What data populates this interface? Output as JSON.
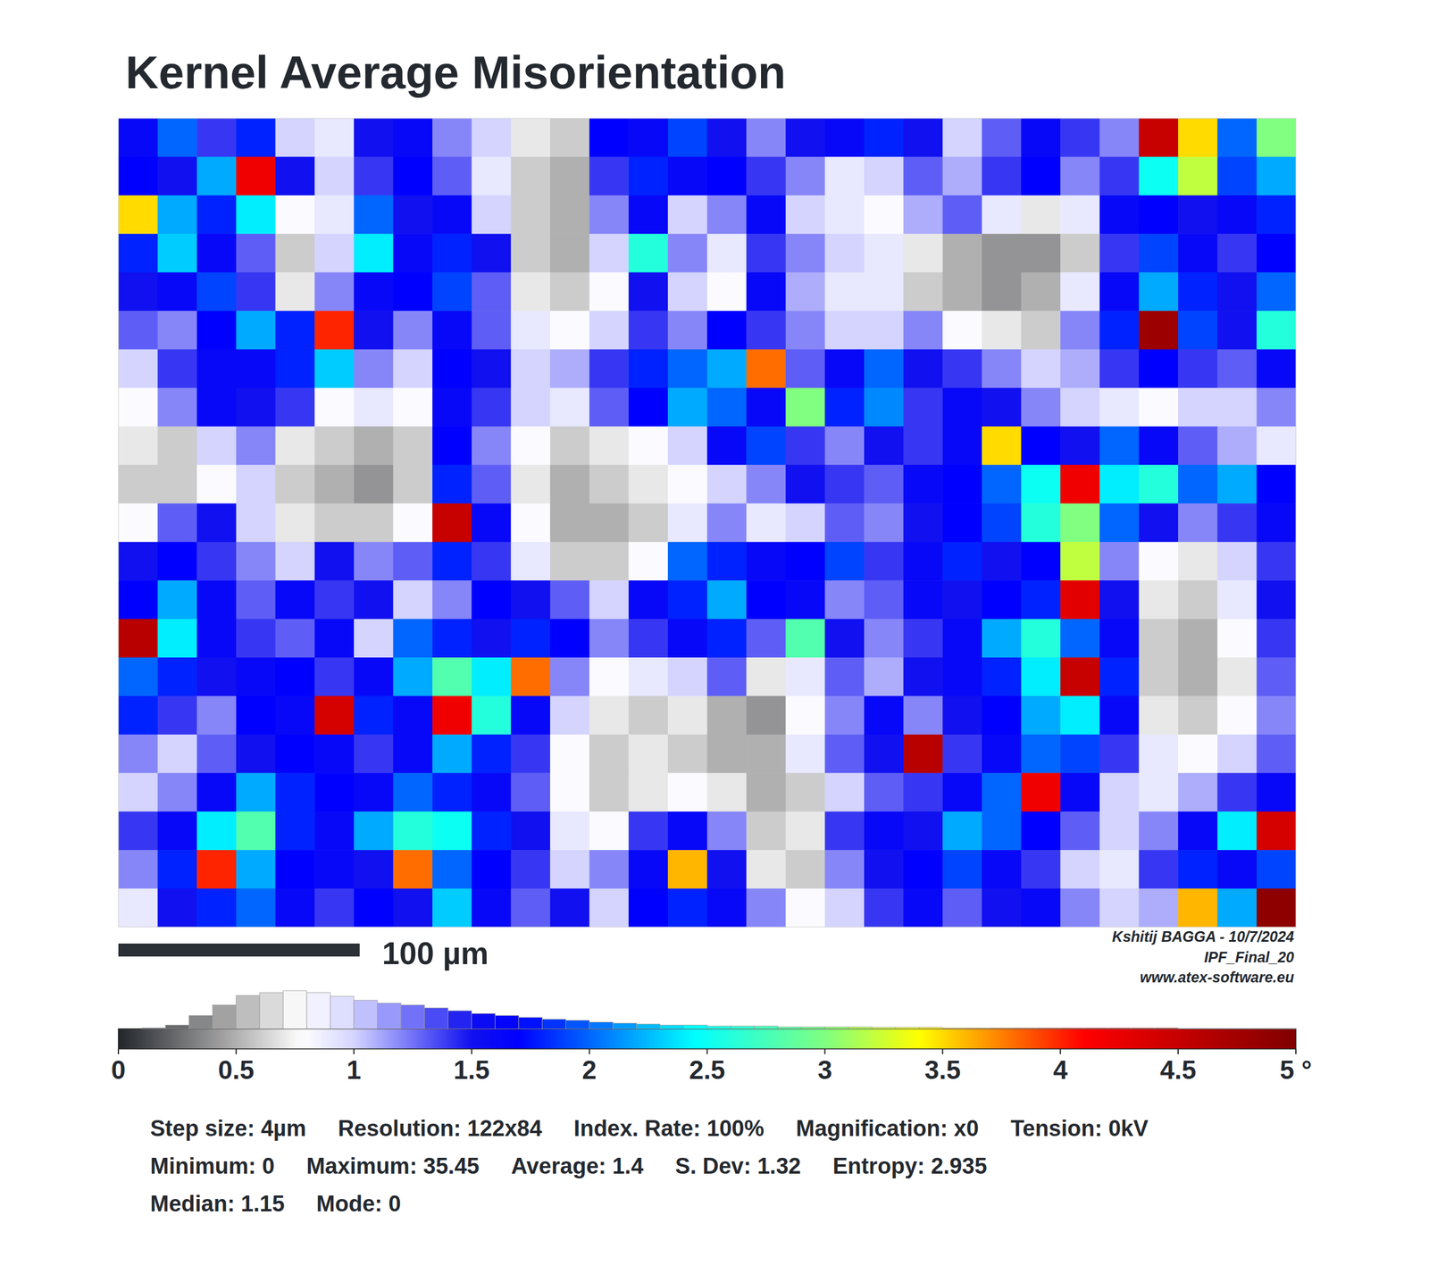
{
  "chart_data": {
    "type": "heatmap",
    "title": "Kernel Average Misorientation",
    "xlim": [
      0,
      488
    ],
    "ylim": [
      0,
      336
    ],
    "tick_labels": false,
    "scale_bar": {
      "length": 100,
      "label": "100 µm"
    },
    "credits": [
      "Kshitij BAGGA - 10/7/2024",
      "IPF_Final_20",
      "www.atex-software.eu"
    ],
    "stats": [
      [
        "Step size: 4µm",
        "Resolution: 122x84",
        "Index. Rate: 100%",
        "Magnification: x0",
        "Tension: 0kV"
      ],
      [
        "Minimum: 0",
        "Maximum: 35.45",
        "Average: 1.4",
        "S. Dev: 1.32",
        "Entropy: 2.935"
      ],
      [
        "Median: 1.15",
        "Mode: 0"
      ]
    ],
    "colorbar": {
      "range": [
        0,
        5
      ],
      "ticks": [
        0,
        0.5,
        1,
        1.5,
        2,
        2.5,
        3,
        3.5,
        4,
        4.5,
        {
          "value": 5,
          "label": "5 °"
        }
      ]
    },
    "histogram": {
      "bins": [
        0,
        0.1,
        0.2,
        0.3,
        0.4,
        0.5,
        0.6,
        0.7,
        0.8,
        0.9,
        1,
        1.1,
        1.2,
        1.3,
        1.4,
        1.5,
        1.6,
        1.7,
        1.8,
        1.9,
        2,
        2.1,
        2.2,
        2.3,
        2.4,
        2.5,
        2.6,
        2.7,
        2.8,
        2.9,
        3,
        3.1,
        3.2,
        3.3,
        3.4,
        3.5,
        3.6,
        3.7,
        3.8,
        3.9,
        4,
        4.1,
        4.2,
        4.3,
        4.4,
        4.5,
        4.6,
        4.7,
        4.8,
        4.9,
        5
      ],
      "counts": [
        0,
        1,
        4,
        14,
        25,
        35,
        38,
        40,
        38,
        34,
        30,
        27,
        25,
        22,
        19,
        16,
        14,
        12,
        10,
        9,
        7,
        6,
        5,
        4,
        4,
        3,
        3,
        3,
        2,
        2,
        2,
        2,
        1.5,
        1.5,
        1.5,
        1,
        1,
        1,
        1,
        1,
        1,
        1,
        1,
        1,
        1,
        0.5,
        0.5,
        0.5,
        0.5,
        0.5
      ]
    },
    "cells": [
      [
        1.6,
        2.0,
        1.4,
        1.8,
        1.0,
        0.9,
        1.5,
        1.6,
        1.2,
        1.0,
        0.7,
        0.6,
        1.7,
        1.6,
        1.9,
        1.5,
        1.2,
        1.5,
        1.6,
        1.8,
        1.5,
        1.0,
        1.3,
        1.6,
        1.4,
        1.2,
        4.5,
        3.5,
        2.0,
        3.0
      ],
      [
        1.7,
        1.5,
        2.2,
        4.2,
        1.5,
        1.0,
        1.4,
        1.7,
        1.3,
        0.9,
        0.6,
        0.5,
        1.4,
        1.8,
        1.6,
        1.7,
        1.4,
        1.2,
        0.9,
        1.0,
        1.3,
        1.1,
        1.4,
        1.7,
        1.2,
        1.4,
        2.5,
        3.2,
        1.9,
        2.2
      ],
      [
        3.5,
        2.2,
        1.8,
        2.4,
        0.8,
        0.9,
        2.0,
        1.5,
        1.6,
        1.0,
        0.6,
        0.5,
        1.2,
        1.6,
        1.0,
        1.2,
        1.6,
        1.0,
        0.9,
        0.8,
        1.1,
        1.3,
        0.9,
        0.7,
        0.9,
        1.6,
        1.7,
        1.5,
        1.6,
        1.8
      ],
      [
        1.8,
        2.3,
        1.6,
        1.3,
        0.6,
        1.0,
        2.4,
        1.6,
        1.8,
        1.5,
        0.6,
        0.5,
        1.0,
        2.6,
        1.2,
        0.9,
        1.4,
        1.2,
        1.0,
        0.9,
        0.7,
        0.5,
        0.4,
        0.4,
        0.6,
        1.4,
        1.9,
        1.6,
        1.4,
        1.7
      ],
      [
        1.5,
        1.6,
        1.9,
        1.4,
        0.7,
        1.2,
        1.6,
        1.7,
        1.9,
        1.3,
        0.7,
        0.6,
        0.8,
        1.5,
        1.0,
        0.8,
        1.6,
        1.1,
        0.9,
        0.9,
        0.6,
        0.5,
        0.4,
        0.5,
        0.9,
        1.6,
        2.2,
        1.8,
        1.5,
        2.0
      ],
      [
        1.3,
        1.2,
        1.7,
        2.2,
        1.8,
        4.0,
        1.5,
        1.2,
        1.6,
        1.3,
        0.9,
        0.8,
        1.0,
        1.4,
        1.2,
        1.7,
        1.4,
        1.2,
        1.0,
        1.0,
        1.2,
        0.8,
        0.7,
        0.6,
        1.2,
        1.8,
        4.8,
        1.9,
        1.5,
        2.6
      ],
      [
        1.0,
        1.4,
        1.6,
        1.6,
        1.8,
        2.3,
        1.2,
        1.0,
        1.7,
        1.5,
        1.0,
        1.1,
        1.4,
        1.8,
        2.0,
        2.2,
        3.8,
        1.3,
        1.6,
        2.0,
        1.5,
        1.4,
        1.2,
        1.0,
        1.1,
        1.4,
        1.7,
        1.4,
        1.3,
        1.6
      ],
      [
        0.8,
        1.2,
        1.6,
        1.5,
        1.4,
        0.8,
        0.9,
        0.8,
        1.6,
        1.4,
        1.0,
        0.9,
        1.3,
        1.7,
        2.2,
        2.0,
        1.6,
        3.0,
        1.8,
        2.1,
        1.4,
        1.6,
        1.5,
        1.2,
        1.0,
        0.9,
        0.8,
        1.0,
        1.0,
        1.2
      ],
      [
        0.7,
        0.6,
        1.0,
        1.2,
        0.7,
        0.6,
        0.5,
        0.6,
        1.7,
        1.2,
        0.8,
        0.6,
        0.7,
        0.8,
        1.0,
        1.6,
        1.9,
        1.4,
        1.2,
        1.5,
        1.4,
        1.6,
        3.5,
        1.7,
        1.5,
        2.0,
        1.6,
        1.3,
        1.1,
        0.9
      ],
      [
        0.6,
        0.6,
        0.8,
        1.0,
        0.6,
        0.5,
        0.4,
        0.6,
        1.8,
        1.3,
        0.7,
        0.5,
        0.6,
        0.7,
        0.8,
        1.0,
        1.2,
        1.5,
        1.4,
        1.3,
        1.6,
        1.7,
        2.0,
        2.5,
        4.2,
        2.4,
        2.6,
        2.0,
        2.2,
        1.7
      ],
      [
        0.8,
        1.3,
        1.5,
        1.0,
        0.7,
        0.6,
        0.6,
        0.8,
        4.5,
        1.6,
        0.8,
        0.5,
        0.5,
        0.6,
        0.9,
        1.2,
        0.9,
        1.0,
        1.3,
        1.2,
        1.5,
        1.7,
        1.9,
        2.6,
        3.0,
        2.0,
        1.5,
        1.2,
        1.4,
        1.6
      ],
      [
        1.5,
        1.7,
        1.4,
        1.2,
        1.0,
        1.5,
        1.2,
        1.3,
        1.8,
        1.4,
        0.9,
        0.6,
        0.6,
        0.8,
        2.0,
        1.8,
        1.6,
        1.7,
        1.9,
        1.4,
        1.6,
        1.8,
        1.5,
        1.7,
        3.2,
        1.2,
        0.8,
        0.7,
        1.0,
        1.4
      ],
      [
        1.7,
        2.2,
        1.6,
        1.3,
        1.6,
        1.4,
        1.5,
        1.0,
        1.2,
        1.7,
        1.5,
        1.3,
        1.0,
        1.6,
        1.8,
        2.2,
        1.7,
        1.6,
        1.2,
        1.3,
        1.6,
        1.5,
        1.7,
        1.8,
        4.3,
        1.5,
        0.7,
        0.6,
        0.9,
        1.5
      ],
      [
        4.6,
        2.4,
        1.6,
        1.4,
        1.3,
        1.6,
        1.0,
        2.0,
        1.8,
        1.5,
        1.8,
        1.7,
        1.2,
        1.4,
        1.6,
        1.8,
        1.3,
        2.8,
        1.5,
        1.2,
        1.4,
        1.6,
        2.2,
        2.6,
        2.0,
        1.6,
        0.6,
        0.5,
        0.8,
        1.4
      ],
      [
        2.0,
        1.8,
        1.5,
        1.6,
        1.7,
        1.4,
        1.6,
        2.2,
        2.8,
        2.4,
        3.8,
        1.2,
        0.8,
        0.9,
        1.0,
        1.3,
        0.7,
        0.9,
        1.3,
        1.1,
        1.5,
        1.6,
        1.8,
        2.4,
        4.5,
        1.8,
        0.6,
        0.5,
        0.7,
        1.3
      ],
      [
        1.8,
        1.4,
        1.2,
        1.7,
        1.6,
        4.4,
        1.8,
        1.6,
        4.2,
        2.6,
        1.6,
        1.0,
        0.7,
        0.6,
        0.7,
        0.5,
        0.4,
        0.8,
        1.2,
        1.6,
        1.2,
        1.5,
        1.7,
        2.2,
        2.4,
        1.6,
        0.7,
        0.6,
        0.8,
        1.2
      ],
      [
        1.2,
        1.0,
        1.3,
        1.5,
        1.7,
        1.6,
        1.4,
        1.6,
        2.2,
        1.8,
        1.4,
        0.8,
        0.6,
        0.7,
        0.6,
        0.5,
        0.5,
        0.9,
        1.3,
        1.5,
        4.6,
        1.4,
        1.6,
        2.0,
        1.9,
        1.4,
        0.9,
        0.8,
        1.0,
        1.3
      ],
      [
        1.0,
        1.2,
        1.6,
        2.2,
        1.8,
        1.7,
        1.6,
        2.0,
        1.8,
        1.6,
        1.3,
        0.8,
        0.6,
        0.7,
        0.8,
        0.7,
        0.5,
        0.6,
        1.0,
        1.3,
        1.4,
        1.6,
        2.0,
        4.2,
        1.6,
        1.0,
        0.9,
        1.1,
        1.4,
        1.6
      ],
      [
        1.4,
        1.6,
        2.4,
        2.8,
        1.8,
        1.6,
        2.2,
        2.6,
        2.5,
        1.8,
        1.5,
        0.9,
        0.8,
        1.4,
        1.6,
        1.2,
        0.6,
        0.7,
        1.4,
        1.6,
        1.5,
        2.2,
        2.0,
        1.7,
        1.3,
        1.0,
        1.2,
        1.6,
        2.4,
        4.4
      ],
      [
        1.2,
        1.8,
        4.0,
        2.2,
        1.7,
        1.6,
        1.5,
        3.8,
        2.0,
        1.7,
        1.4,
        1.0,
        1.2,
        1.6,
        3.6,
        1.5,
        0.7,
        0.6,
        1.2,
        1.5,
        1.7,
        1.9,
        1.6,
        1.4,
        1.0,
        0.9,
        1.4,
        1.8,
        1.6,
        1.9
      ],
      [
        0.9,
        1.5,
        1.8,
        2.0,
        1.6,
        1.4,
        1.7,
        1.5,
        2.3,
        1.6,
        1.3,
        1.5,
        1.0,
        1.7,
        1.8,
        1.6,
        1.2,
        0.8,
        1.0,
        1.4,
        1.6,
        1.3,
        1.5,
        1.6,
        1.2,
        1.0,
        1.1,
        3.6,
        2.2,
        4.9
      ]
    ]
  }
}
